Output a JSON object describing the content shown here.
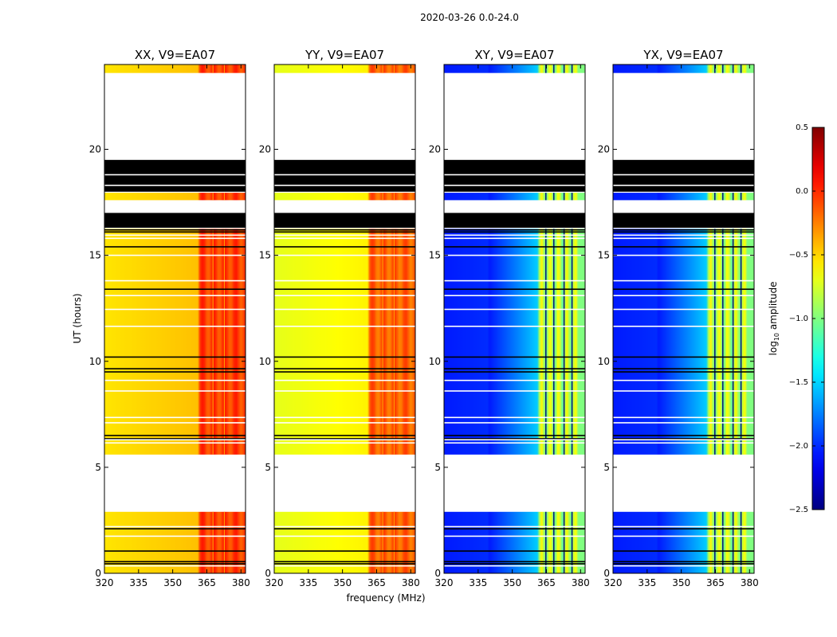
{
  "suptitle": "2020-03-26 0.0-24.0",
  "chart_data": {
    "type": "heatmap",
    "title": "2020-03-26 0.0-24.0",
    "xlabel": "frequency (MHz)",
    "ylabel": "UT (hours)",
    "xlim": [
      320,
      382
    ],
    "ylim": [
      0,
      24
    ],
    "xticks": [
      320,
      335,
      350,
      365,
      380
    ],
    "yticks": [
      0,
      5,
      10,
      15,
      20
    ],
    "colormap": "jet",
    "colorbar": {
      "label": "log10 amplitude",
      "label_main": "log",
      "label_sub": "10",
      "label_tail": " amplitude",
      "range": [
        -2.5,
        0.5
      ],
      "ticks": [
        0.5,
        0.0,
        -0.5,
        -1.0,
        -1.5,
        -2.0,
        -2.5
      ],
      "tick_labels": [
        "0.5",
        "0.0",
        "−0.5",
        "−1.0",
        "−1.5",
        "−2.0",
        "−2.5"
      ]
    },
    "panels": [
      {
        "id": "xx",
        "title": "XX, V9=EA07",
        "base_level": -0.55,
        "band_level": -0.05,
        "band_style": "parallel"
      },
      {
        "id": "yy",
        "title": "YY, V9=EA07",
        "base_level": -0.7,
        "band_level": -0.15,
        "band_style": "parallel"
      },
      {
        "id": "xy",
        "title": "XY, V9=EA07",
        "base_level": -2.05,
        "band_level": -0.85,
        "band_style": "cross"
      },
      {
        "id": "yx",
        "title": "YX, V9=EA07",
        "base_level": -2.05,
        "band_level": -0.85,
        "band_style": "cross"
      }
    ],
    "data_segments_hours": [
      [
        0,
        2.9
      ],
      [
        5.6,
        16.25
      ],
      [
        17.6,
        17.95
      ],
      [
        23.6,
        24.0
      ]
    ],
    "flagged_black_hours": [
      [
        18.0,
        19.5
      ],
      [
        16.3,
        17.0
      ]
    ],
    "black_line_hours": [
      0.45,
      0.55,
      1.05,
      2.1,
      6.35,
      6.5,
      9.5,
      9.65,
      10.2,
      13.4,
      15.4,
      16.1,
      16.2
    ],
    "white_line_hours": [
      0.35,
      1.75,
      2.2,
      5.5,
      6.15,
      6.3,
      7.1,
      7.35,
      8.6,
      9.1,
      11.65,
      12.45,
      13.1,
      13.8,
      15.0,
      15.8,
      15.95,
      18.3,
      18.8
    ]
  }
}
